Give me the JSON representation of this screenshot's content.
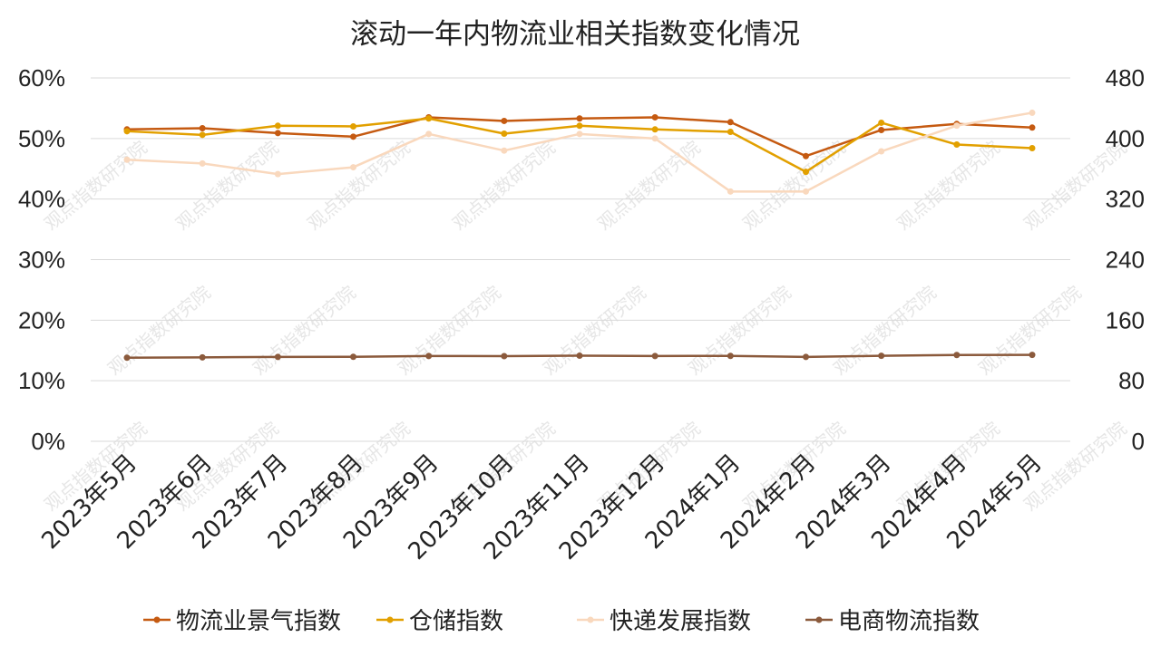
{
  "chart_data": {
    "type": "line",
    "title": "滚动一年内物流业相关指数变化情况",
    "categories": [
      "2023年5月",
      "2023年6月",
      "2023年7月",
      "2023年8月",
      "2023年9月",
      "2023年10月",
      "2023年11月",
      "2023年12月",
      "2024年1月",
      "2024年2月",
      "2024年3月",
      "2024年4月",
      "2024年5月"
    ],
    "y_left": {
      "ticks": [
        "0%",
        "10%",
        "20%",
        "30%",
        "40%",
        "50%",
        "60%"
      ],
      "ylim": [
        0,
        60
      ],
      "unit": "%"
    },
    "y_right": {
      "ticks": [
        "0",
        "80",
        "160",
        "240",
        "320",
        "400",
        "480"
      ],
      "ylim": [
        0,
        480
      ]
    },
    "grid": true,
    "legend_position": "bottom",
    "series": [
      {
        "name": "物流业景气指数",
        "axis": "left",
        "color": "#c55a11",
        "values": [
          51.5,
          51.7,
          50.9,
          50.3,
          53.5,
          52.9,
          53.3,
          53.5,
          52.7,
          47.1,
          51.4,
          52.4,
          51.8
        ]
      },
      {
        "name": "仓储指数",
        "axis": "left",
        "color": "#e2a000",
        "values": [
          51.2,
          50.6,
          52.1,
          52.0,
          53.3,
          50.8,
          52.1,
          51.5,
          51.1,
          44.5,
          52.6,
          49.0,
          48.4
        ]
      },
      {
        "name": "快递发展指数",
        "axis": "right",
        "color": "#f9d8bd",
        "values": [
          372,
          367,
          353,
          362,
          406,
          384,
          406,
          400,
          330,
          330,
          383,
          417,
          434
        ]
      },
      {
        "name": "电商物流指数",
        "axis": "right",
        "color": "#8b5a3c",
        "values": [
          110.4,
          110.9,
          111.5,
          111.6,
          112.7,
          112.5,
          113.1,
          112.7,
          112.8,
          111.5,
          113.0,
          114.0,
          114.2
        ]
      }
    ]
  },
  "watermark_text": "观点指数研究院"
}
